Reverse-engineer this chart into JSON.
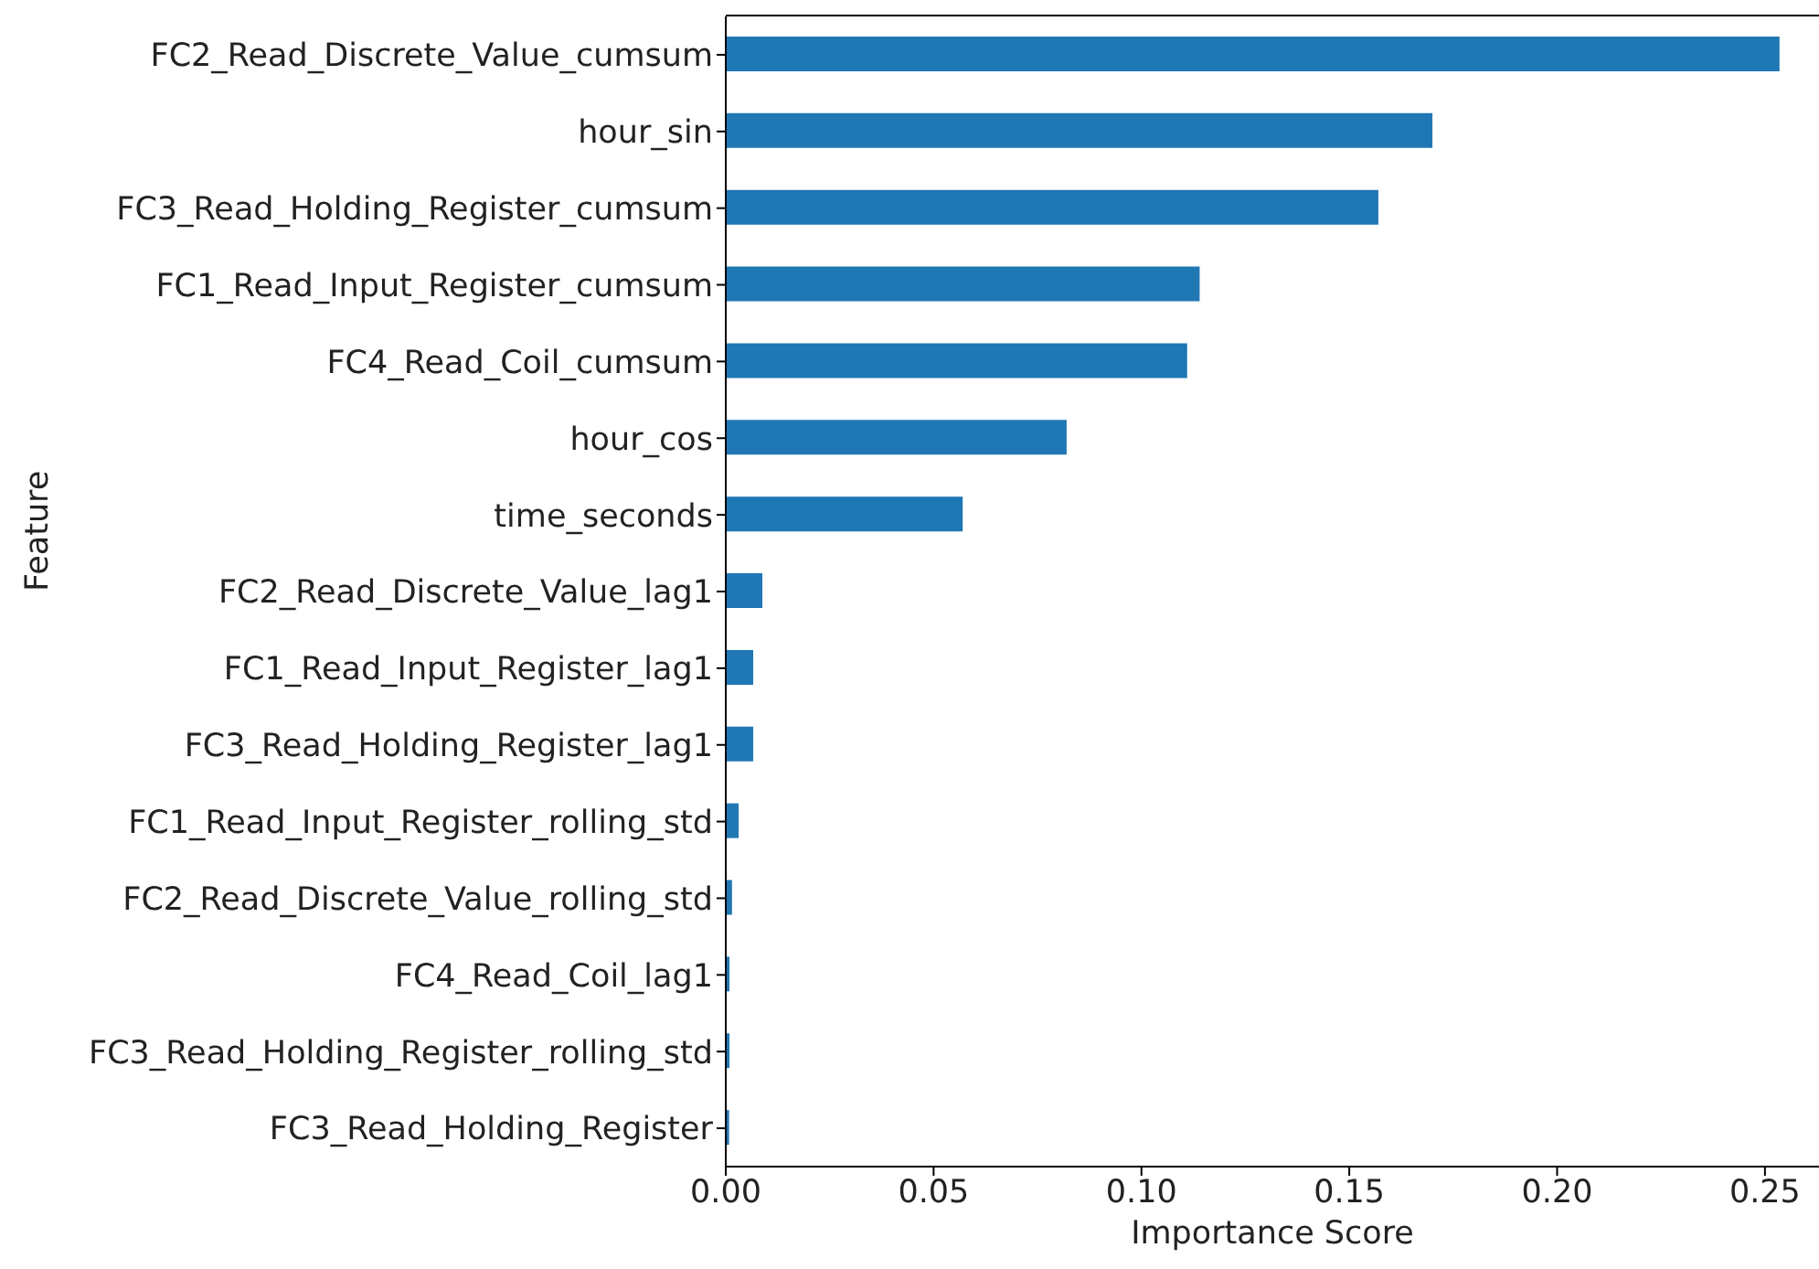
{
  "chart_data": {
    "type": "bar",
    "orientation": "horizontal",
    "xlabel": "Importance Score",
    "ylabel": "Feature",
    "categories": [
      "FC2_Read_Discrete_Value_cumsum",
      "hour_sin",
      "FC3_Read_Holding_Register_cumsum",
      "FC1_Read_Input_Register_cumsum",
      "FC4_Read_Coil_cumsum",
      "hour_cos",
      "time_seconds",
      "FC2_Read_Discrete_Value_lag1",
      "FC1_Read_Input_Register_lag1",
      "FC3_Read_Holding_Register_lag1",
      "FC1_Read_Input_Register_rolling_std",
      "FC2_Read_Discrete_Value_rolling_std",
      "FC4_Read_Coil_lag1",
      "FC3_Read_Holding_Register_rolling_std",
      "FC3_Read_Holding_Register"
    ],
    "values": [
      0.2535,
      0.17,
      0.157,
      0.114,
      0.111,
      0.082,
      0.057,
      0.0088,
      0.0066,
      0.0066,
      0.0031,
      0.0015,
      0.0009,
      0.0009,
      0.0008
    ],
    "color": "#1f77b4",
    "xlim": [
      0,
      0.263
    ],
    "xticks": [
      {
        "value": 0,
        "label": "0.00"
      },
      {
        "value": 0.05,
        "label": "0.05"
      },
      {
        "value": 0.1,
        "label": "0.10"
      },
      {
        "value": 0.15,
        "label": "0.15"
      },
      {
        "value": 0.2,
        "label": "0.20"
      },
      {
        "value": 0.25,
        "label": "0.25"
      }
    ],
    "grid": false,
    "legend": false
  }
}
